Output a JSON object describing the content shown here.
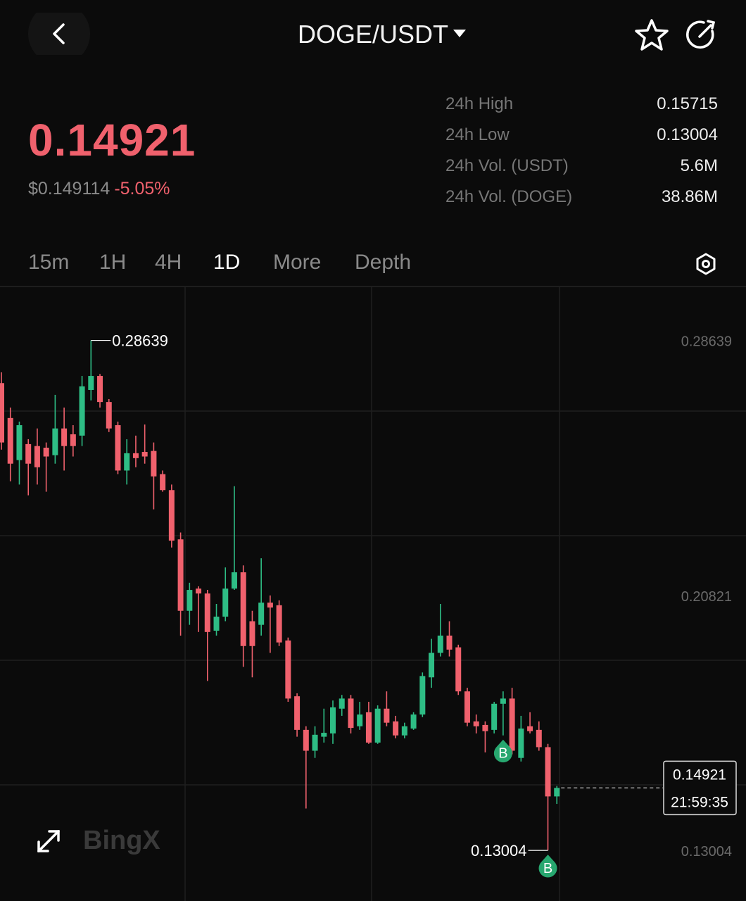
{
  "header": {
    "title": "DOGE/USDT"
  },
  "ticker": {
    "price": "0.14921",
    "usd_price": "$0.149114",
    "change": "-5.05%"
  },
  "stats": [
    {
      "label": "24h High",
      "value": "0.15715"
    },
    {
      "label": "24h Low",
      "value": "0.13004"
    },
    {
      "label": "24h Vol. (USDT)",
      "value": "5.6M"
    },
    {
      "label": "24h Vol. (DOGE)",
      "value": "38.86M"
    }
  ],
  "tabs": [
    "15m",
    "1H",
    "4H",
    "1D",
    "More",
    "Depth"
  ],
  "active_tab": "1D",
  "chart_data": {
    "type": "candlestick",
    "up_color": "#2ebd85",
    "down_color": "#f0616d",
    "ylim": [
      0.1154,
      0.3027
    ],
    "yticks": [
      0.28639,
      0.20821,
      0.13004
    ],
    "open": [
      0.2733,
      0.2626,
      0.2497,
      0.2546,
      0.254,
      0.2535,
      0.2512,
      0.2594,
      0.2576,
      0.2572,
      0.2712,
      0.2755,
      0.2675,
      0.2604,
      0.2465,
      0.2518,
      0.2522,
      0.2525,
      0.2454,
      0.2405,
      0.2254,
      0.2035,
      0.2103,
      0.2088,
      0.1974,
      0.2017,
      0.2103,
      0.2153,
      0.2003,
      0.1992,
      0.206,
      0.2052,
      0.1944,
      0.1773,
      0.167,
      0.1606,
      0.1649,
      0.1659,
      0.1735,
      0.1766,
      0.1681,
      0.1724,
      0.1631,
      0.1735,
      0.1696,
      0.1653,
      0.1674,
      0.1717,
      0.1831,
      0.1906,
      0.1959,
      0.1923,
      0.1788,
      0.1696,
      0.1685,
      0.167,
      0.175,
      0.1766,
      0.1584,
      0.1681,
      0.167,
      0.1617,
      0.1466
    ],
    "high": [
      0.2766,
      0.2658,
      0.2615,
      0.2561,
      0.2594,
      0.2551,
      0.2697,
      0.2658,
      0.2604,
      0.2755,
      0.28639,
      0.2761,
      0.2684,
      0.2615,
      0.2561,
      0.2572,
      0.2606,
      0.2551,
      0.2465,
      0.2422,
      0.2275,
      0.2121,
      0.211,
      0.2099,
      0.2056,
      0.2168,
      0.2417,
      0.2174,
      0.2035,
      0.2196,
      0.2082,
      0.2067,
      0.1953,
      0.1782,
      0.1681,
      0.1681,
      0.1735,
      0.176,
      0.1777,
      0.1777,
      0.1756,
      0.1756,
      0.1745,
      0.1788,
      0.1713,
      0.1692,
      0.1724,
      0.1846,
      0.1949,
      0.2056,
      0.2003,
      0.1931,
      0.1799,
      0.1717,
      0.1696,
      0.1756,
      0.1788,
      0.1799,
      0.1713,
      0.1724,
      0.1696,
      0.1627,
      0.1498
    ],
    "low": [
      0.2529,
      0.2432,
      0.2422,
      0.2389,
      0.2422,
      0.24,
      0.2486,
      0.2465,
      0.2508,
      0.254,
      0.268,
      0.2658,
      0.2583,
      0.2454,
      0.2422,
      0.2475,
      0.2486,
      0.2346,
      0.24,
      0.2229,
      0.1959,
      0.1992,
      0.197,
      0.182,
      0.1959,
      0.2003,
      0.2099,
      0.1863,
      0.1831,
      0.1959,
      0.1906,
      0.1927,
      0.1756,
      0.1649,
      0.1429,
      0.1584,
      0.1631,
      0.1627,
      0.1713,
      0.1659,
      0.167,
      0.1627,
      0.1627,
      0.1681,
      0.1644,
      0.1644,
      0.167,
      0.1709,
      0.1799,
      0.1895,
      0.1895,
      0.1777,
      0.1681,
      0.1659,
      0.1601,
      0.1659,
      0.1653,
      0.1595,
      0.1573,
      0.1659,
      0.1606,
      0.13004,
      0.1443
    ],
    "close": [
      0.2551,
      0.2486,
      0.2604,
      0.2486,
      0.2475,
      0.2508,
      0.2594,
      0.254,
      0.254,
      0.2723,
      0.2755,
      0.2675,
      0.2594,
      0.2465,
      0.2518,
      0.2503,
      0.2508,
      0.2447,
      0.2405,
      0.225,
      0.2035,
      0.2099,
      0.2088,
      0.197,
      0.2017,
      0.2103,
      0.2153,
      0.1927,
      0.1927,
      0.206,
      0.2045,
      0.1938,
      0.1766,
      0.167,
      0.1606,
      0.1655,
      0.1661,
      0.1739,
      0.1766,
      0.1676,
      0.1717,
      0.1631,
      0.1735,
      0.1692,
      0.1653,
      0.1681,
      0.1717,
      0.1835,
      0.1906,
      0.1959,
      0.1916,
      0.1788,
      0.1692,
      0.1681,
      0.1666,
      0.175,
      0.1766,
      0.1606,
      0.1674,
      0.1666,
      0.1617,
      0.1466,
      0.14921
    ],
    "countdown": "21:59:35",
    "trade_markers": [
      {
        "label": "B",
        "candle": 56
      },
      {
        "label": "B",
        "candle": 61
      }
    ],
    "watermark": "BingX"
  }
}
